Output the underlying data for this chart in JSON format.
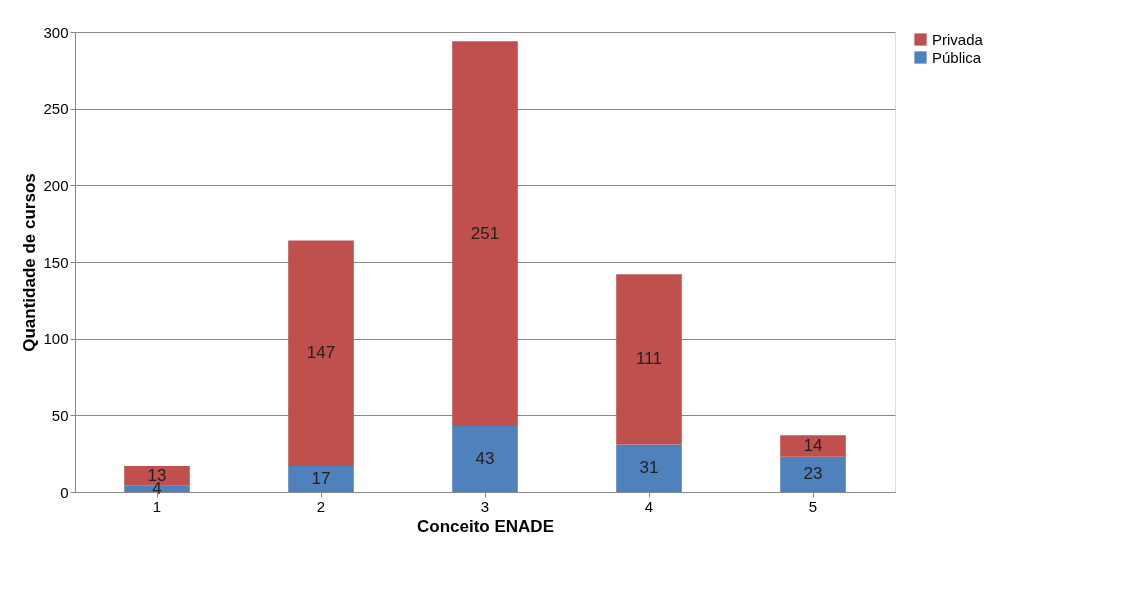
{
  "chart_data": {
    "type": "bar",
    "stacked": true,
    "xlabel": "Conceito ENADE",
    "ylabel": "Quantidade de cursos",
    "categories": [
      "1",
      "2",
      "3",
      "4",
      "5"
    ],
    "series": [
      {
        "name": "Pública",
        "color": "#4f81bd",
        "values": [
          4,
          17,
          43,
          31,
          23
        ]
      },
      {
        "name": "Privada",
        "color": "#c0504d",
        "values": [
          13,
          147,
          251,
          111,
          14
        ]
      }
    ],
    "ylim": [
      0,
      300
    ],
    "yticks": [
      0,
      50,
      100,
      150,
      200,
      250,
      300
    ],
    "grid": "y",
    "legend": "right",
    "data_labels": true
  }
}
